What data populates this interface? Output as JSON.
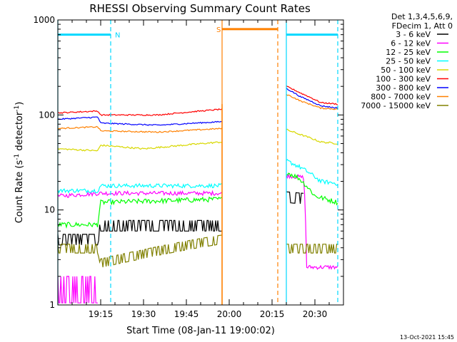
{
  "chart_data": {
    "type": "line",
    "title": "RHESSI Observing Summary Count Rates",
    "xlabel": "Start Time (08-Jan-11 19:00:02)",
    "ylabel_main": "Count Rate (s",
    "ylabel_sup1": "-1",
    "ylabel_mid": " detector",
    "ylabel_sup2": "-1",
    "ylabel_end": ")",
    "yscale": "log",
    "xlim_minutes": [
      0,
      100
    ],
    "ylim": [
      1,
      1000
    ],
    "x_ticks": [
      {
        "label": "19:15",
        "minute": 15
      },
      {
        "label": "19:30",
        "minute": 30
      },
      {
        "label": "19:45",
        "minute": 45
      },
      {
        "label": "20:00",
        "minute": 60
      },
      {
        "label": "20:15",
        "minute": 75
      },
      {
        "label": "20:30",
        "minute": 90
      }
    ],
    "y_ticks": [
      {
        "label": "1",
        "value": 1
      },
      {
        "label": "10",
        "value": 10
      },
      {
        "label": "100",
        "value": 100
      },
      {
        "label": "1000",
        "value": 1000
      }
    ],
    "legend_header": [
      "Det 1,3,4,5,6,9,",
      "FDecim 1, Att 0"
    ],
    "legend_placement": "right",
    "footer_date": "13-Oct-2021 15:45",
    "flags": [
      {
        "label": "N",
        "color": "#00d8ff",
        "start": 0,
        "end": 18.5,
        "level": 700
      },
      {
        "label": "S",
        "color": "#ff8000",
        "start": 57.5,
        "end": 77,
        "level": 800
      },
      {
        "label": "",
        "color": "#00d8ff",
        "start": 80,
        "end": 98,
        "level": 700
      }
    ],
    "gap": {
      "start": 57.5,
      "end": 80
    },
    "series": [
      {
        "name": "3 - 6 keV",
        "color": "#000000",
        "noise": 0.18,
        "step": true,
        "seg1": [
          [
            0,
            5
          ],
          [
            14,
            5
          ],
          [
            15,
            7
          ],
          [
            57.5,
            7
          ]
        ],
        "seg2": [
          [
            80,
            14
          ],
          [
            86,
            13.5
          ]
        ]
      },
      {
        "name": "6 - 12 keV",
        "color": "#ff00ff",
        "noise": 0.05,
        "step": false,
        "seg1": [
          [
            0,
            14
          ],
          [
            15,
            15
          ],
          [
            57.5,
            15
          ]
        ],
        "seg2": [
          [
            80,
            23
          ],
          [
            86,
            22
          ],
          [
            87,
            2.5
          ],
          [
            98,
            2.5
          ]
        ]
      },
      {
        "name": "12 - 25 keV",
        "color": "#00ff00",
        "noise": 0.06,
        "step": false,
        "seg1": [
          [
            0,
            7
          ],
          [
            14,
            7
          ],
          [
            15,
            12
          ],
          [
            57.5,
            13
          ]
        ],
        "seg2": [
          [
            80,
            25
          ],
          [
            84,
            22
          ],
          [
            90,
            14
          ],
          [
            98,
            12
          ]
        ]
      },
      {
        "name": "25 - 50 keV",
        "color": "#00ffff",
        "noise": 0.05,
        "step": false,
        "seg1": [
          [
            0,
            16
          ],
          [
            14,
            16
          ],
          [
            15,
            18
          ],
          [
            57.5,
            18
          ]
        ],
        "seg2": [
          [
            80,
            33
          ],
          [
            85,
            28
          ],
          [
            92,
            20
          ],
          [
            98,
            19
          ]
        ]
      },
      {
        "name": "50 - 100 keV",
        "color": "#d8d800",
        "noise": 0.02,
        "step": false,
        "seg1": [
          [
            0,
            44
          ],
          [
            14,
            42
          ],
          [
            15,
            48
          ],
          [
            30,
            44
          ],
          [
            57.5,
            52
          ]
        ],
        "seg2": [
          [
            80,
            70
          ],
          [
            85,
            62
          ],
          [
            92,
            52
          ],
          [
            98,
            50
          ]
        ]
      },
      {
        "name": "100 - 300 keV",
        "color": "#ff0000",
        "noise": 0.015,
        "step": false,
        "seg1": [
          [
            0,
            105
          ],
          [
            14,
            110
          ],
          [
            15,
            100
          ],
          [
            35,
            100
          ],
          [
            57.5,
            115
          ]
        ],
        "seg2": [
          [
            80,
            200
          ],
          [
            85,
            170
          ],
          [
            92,
            135
          ],
          [
            98,
            130
          ]
        ]
      },
      {
        "name": "300 - 800 keV",
        "color": "#0000ff",
        "noise": 0.015,
        "step": false,
        "seg1": [
          [
            0,
            90
          ],
          [
            14,
            95
          ],
          [
            15,
            82
          ],
          [
            35,
            78
          ],
          [
            57.5,
            85
          ]
        ],
        "seg2": [
          [
            80,
            190
          ],
          [
            85,
            155
          ],
          [
            92,
            125
          ],
          [
            98,
            118
          ]
        ]
      },
      {
        "name": "800 - 7000 keV",
        "color": "#ff8000",
        "noise": 0.015,
        "step": false,
        "seg1": [
          [
            0,
            72
          ],
          [
            14,
            75
          ],
          [
            15,
            68
          ],
          [
            35,
            66
          ],
          [
            57.5,
            72
          ]
        ],
        "seg2": [
          [
            80,
            165
          ],
          [
            85,
            140
          ],
          [
            92,
            118
          ],
          [
            98,
            115
          ]
        ]
      },
      {
        "name": "7000 - 15000 keV",
        "color": "#808000",
        "noise": 0.15,
        "step": true,
        "seg1": [
          [
            0,
            4
          ],
          [
            14,
            4
          ],
          [
            15,
            2.8
          ],
          [
            30,
            3.5
          ],
          [
            57.5,
            5
          ]
        ],
        "seg2": [
          [
            80,
            4
          ],
          [
            98,
            4
          ]
        ]
      }
    ]
  }
}
